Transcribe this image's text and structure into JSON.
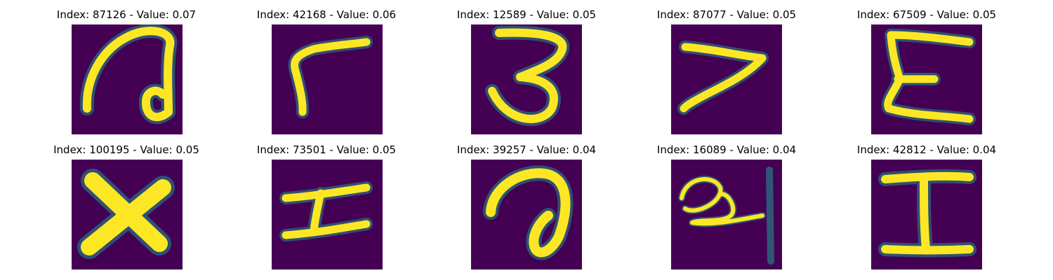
{
  "panels": [
    {
      "title": "Index: 87126 - Value: 0.07",
      "glyph": "handwritten-a-like-stroke"
    },
    {
      "title": "Index: 42168 - Value: 0.06",
      "glyph": "handwritten-r-like-stroke"
    },
    {
      "title": "Index: 12589 - Value: 0.05",
      "glyph": "handwritten-3-like-stroke"
    },
    {
      "title": "Index: 87077 - Value: 0.05",
      "glyph": "handwritten-7-like-stroke"
    },
    {
      "title": "Index: 67509 - Value: 0.05",
      "glyph": "handwritten-E-stroke"
    },
    {
      "title": "Index: 100195 - Value: 0.05",
      "glyph": "handwritten-X-stroke"
    },
    {
      "title": "Index: 73501 - Value: 0.05",
      "glyph": "handwritten-I-slanted-stroke"
    },
    {
      "title": "Index: 39257 - Value: 0.04",
      "glyph": "handwritten-a-like-stroke"
    },
    {
      "title": "Index: 16089 - Value: 0.04",
      "glyph": "handwritten-scribble-stroke"
    },
    {
      "title": "Index: 42812 - Value: 0.04",
      "glyph": "handwritten-I-stroke"
    }
  ],
  "colors": {
    "background": "#440154",
    "stroke_core": "#fde725",
    "stroke_edge": "#21918c"
  }
}
